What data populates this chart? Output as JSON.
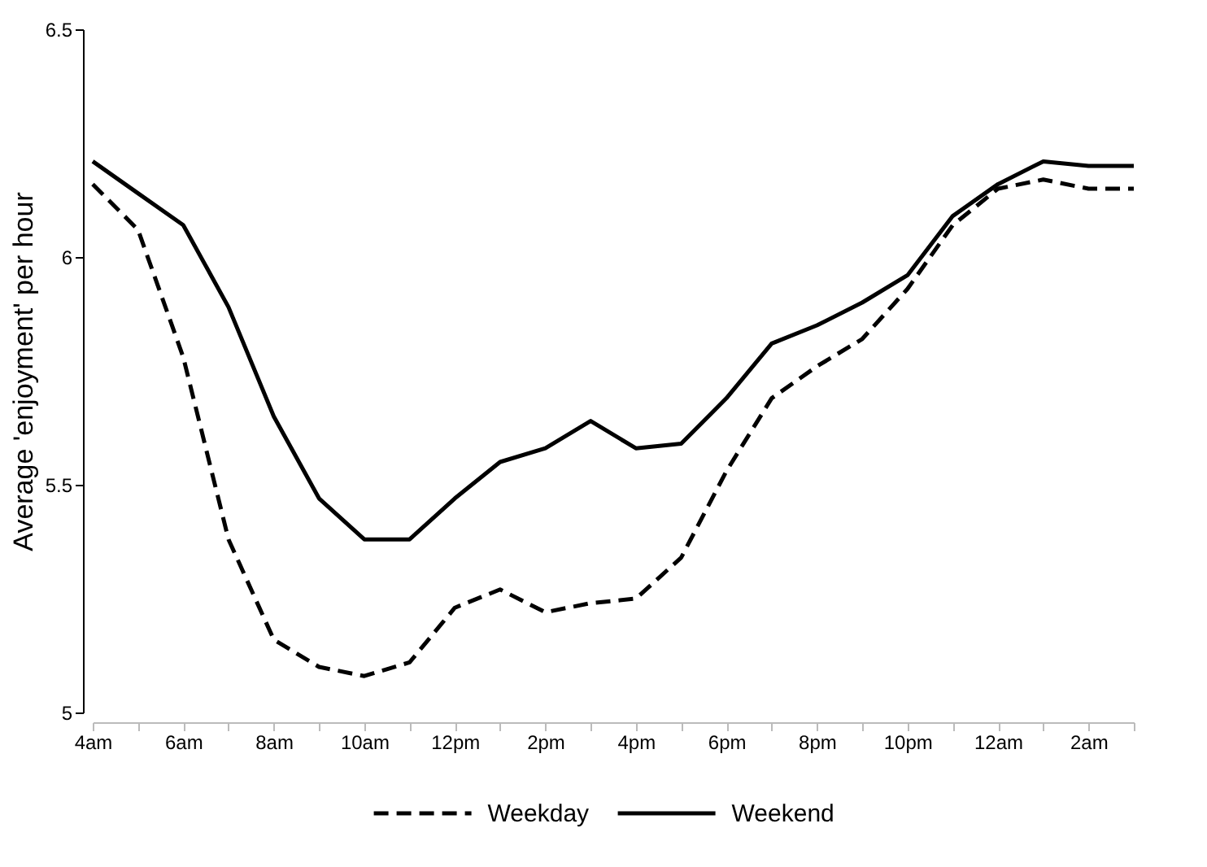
{
  "chart_data": {
    "type": "line",
    "ylabel": "Average 'enjoyment' per hour",
    "categories": [
      "4am",
      null,
      "6am",
      null,
      "8am",
      null,
      "10am",
      null,
      "12pm",
      null,
      "2pm",
      null,
      "4pm",
      null,
      "6pm",
      null,
      "8pm",
      null,
      "10pm",
      null,
      "12am",
      null,
      "2am",
      null
    ],
    "series": [
      {
        "name": "Weekday",
        "color": "#000000",
        "line_style": "dashed",
        "values": [
          6.16,
          6.06,
          5.78,
          5.38,
          5.16,
          5.1,
          5.08,
          5.11,
          5.23,
          5.27,
          5.22,
          5.24,
          5.25,
          5.34,
          5.53,
          5.69,
          5.76,
          5.82,
          5.93,
          6.07,
          6.15,
          6.17,
          6.15,
          6.15
        ]
      },
      {
        "name": "Weekend",
        "color": "#000000",
        "line_style": "solid",
        "values": [
          6.21,
          6.14,
          6.07,
          5.89,
          5.65,
          5.47,
          5.38,
          5.38,
          5.47,
          5.55,
          5.58,
          5.64,
          5.58,
          5.59,
          5.69,
          5.81,
          5.85,
          5.9,
          5.96,
          6.09,
          6.16,
          6.21,
          6.2,
          6.2
        ]
      }
    ],
    "ylim": [
      5,
      6.5
    ],
    "yticks": [
      5,
      5.5,
      6,
      6.5
    ],
    "grid": false,
    "legend": "bottom",
    "marker": "none"
  }
}
